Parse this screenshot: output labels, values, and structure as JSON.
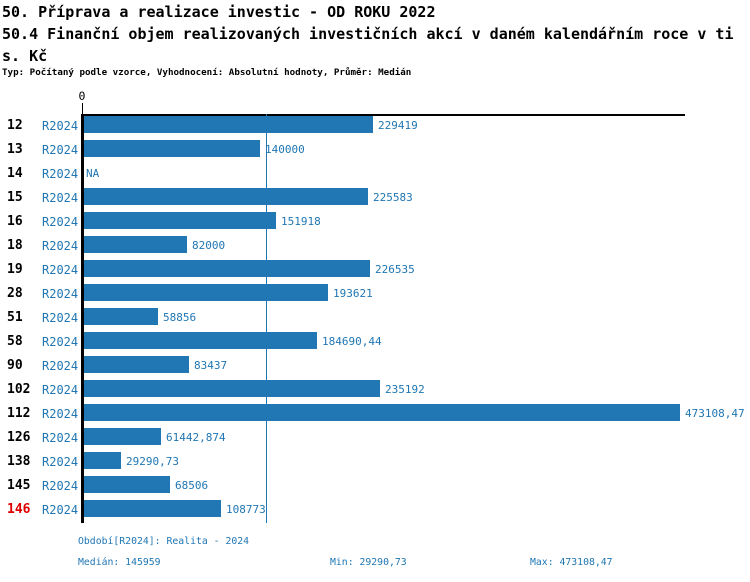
{
  "header": {
    "title_line1": "50. Příprava a realizace investic - OD ROKU 2022",
    "title_line2": "50.4 Finanční objem realizovaných investičních akcí v daném kalendářním roce v ti",
    "title_line3": "s. Kč",
    "meta": "Typ: Počítaný podle vzorce, Vyhodnocení: Absolutní hodnoty, Průměr: Medián"
  },
  "chart_data": {
    "type": "bar",
    "orientation": "horizontal",
    "title": "50.4 Finanční objem realizovaných investičních akcí v daném kalendářním roce v tis. Kč",
    "series_label": "R2024",
    "axis_zero_label": "0",
    "categories": [
      "12",
      "13",
      "14",
      "15",
      "16",
      "18",
      "19",
      "28",
      "51",
      "58",
      "90",
      "102",
      "112",
      "126",
      "138",
      "145",
      "146"
    ],
    "values": [
      229419,
      140000,
      null,
      225583,
      151918,
      82000,
      226535,
      193621,
      58856,
      184690.44,
      83437,
      235192,
      473108.47,
      61442.874,
      29290.73,
      68506,
      108773
    ],
    "value_labels": [
      "229419",
      "140000",
      "NA",
      "225583",
      "151918",
      "82000",
      "226535",
      "193621",
      "58856",
      "184690,44",
      "83437",
      "235192",
      "473108,47",
      "61442,874",
      "29290,73",
      "68506",
      "108773"
    ],
    "median_value": 145959,
    "min_value": 29290.73,
    "max_value": 473108.47,
    "highlight_category": "146",
    "xlim": [
      0,
      480000
    ],
    "grid": "median-reference-line-only",
    "legend": "none"
  },
  "footer": {
    "period_info": "Období[R2024]: Realita - 2024",
    "median": "Medián: 145959",
    "min": "Min: 29290,73",
    "max": "Max: 473108,47"
  },
  "colors": {
    "bar": "#2077B4",
    "blue_text": "#2077B4",
    "median_line": "#2077B4",
    "highlight_red": "#DD0000",
    "axis_black": "#000000"
  }
}
